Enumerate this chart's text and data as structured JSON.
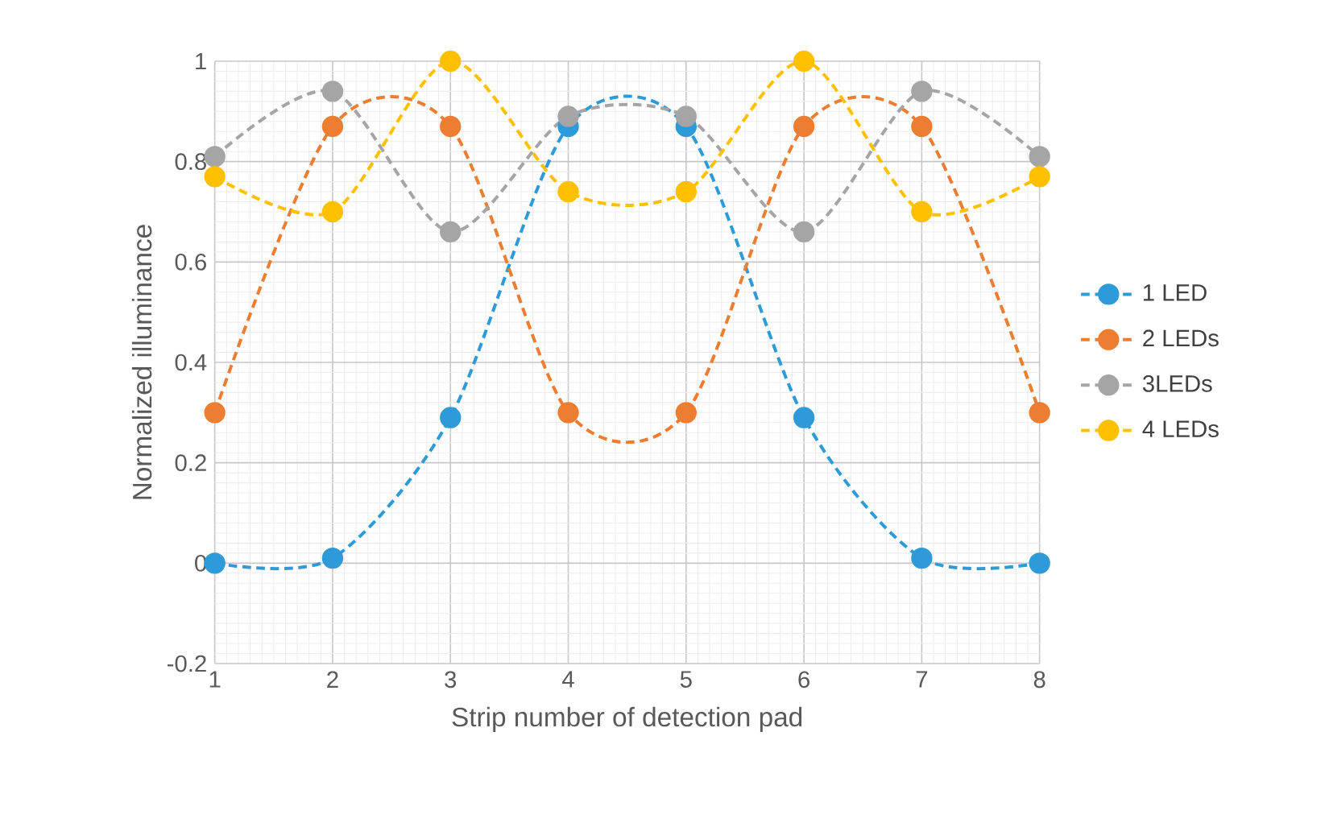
{
  "chart_data": {
    "type": "line",
    "xlabel": "Strip number of detection pad",
    "ylabel": "Normalized illuminance",
    "x": [
      1,
      2,
      3,
      4,
      5,
      6,
      7,
      8
    ],
    "series": [
      {
        "name": "1 LED",
        "color": "#2e9bd8",
        "values": [
          0,
          0.01,
          0.29,
          0.87,
          0.87,
          0.29,
          0.01,
          0
        ]
      },
      {
        "name": "2 LEDs",
        "color": "#ed7d31",
        "values": [
          0.3,
          0.87,
          0.87,
          0.3,
          0.3,
          0.87,
          0.87,
          0.3
        ]
      },
      {
        "name": "3LEDs",
        "color": "#a5a5a5",
        "values": [
          0.81,
          0.94,
          0.66,
          0.89,
          0.89,
          0.66,
          0.94,
          0.81
        ]
      },
      {
        "name": "4 LEDs",
        "color": "#ffc000",
        "values": [
          0.77,
          0.7,
          1.0,
          0.74,
          0.74,
          1.0,
          0.7,
          0.77
        ]
      }
    ],
    "xlim": [
      1,
      8
    ],
    "xticks": [
      1,
      2,
      3,
      4,
      5,
      6,
      7,
      8
    ],
    "ylim": [
      -0.2,
      1
    ],
    "yticks": [
      -0.2,
      0,
      0.2,
      0.4,
      0.6,
      0.8,
      1
    ],
    "grid": true,
    "legend": "right",
    "marker": "circle",
    "line_style": "dashed"
  }
}
